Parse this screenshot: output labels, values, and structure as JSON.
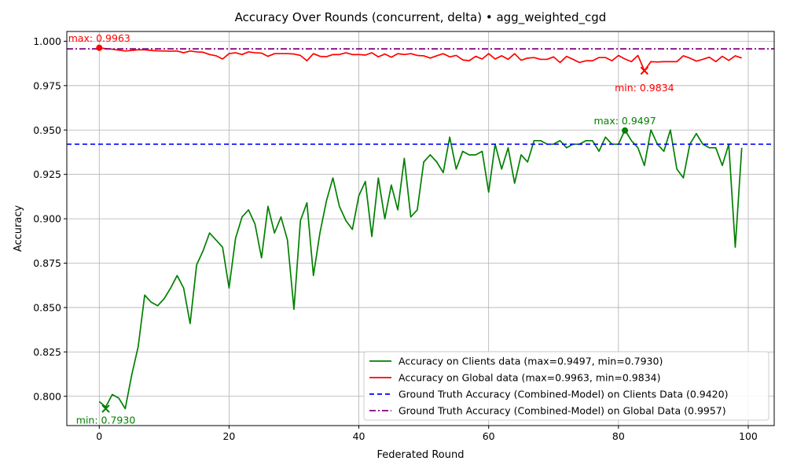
{
  "chart_data": {
    "type": "line",
    "title": "Accuracy Over Rounds (concurrent, delta) • agg_weighted_cgd",
    "xlabel": "Federated Round",
    "ylabel": "Accuracy",
    "xlim": [
      -5,
      104
    ],
    "ylim": [
      0.7835,
      1.0055
    ],
    "xticks": [
      0,
      20,
      40,
      60,
      80,
      100
    ],
    "yticks": [
      0.8,
      0.825,
      0.85,
      0.875,
      0.9,
      0.925,
      0.95,
      0.975,
      1.0
    ],
    "ytick_labels": [
      "0.800",
      "0.825",
      "0.850",
      "0.875",
      "0.900",
      "0.925",
      "0.950",
      "0.975",
      "1.000"
    ],
    "grid": true,
    "legend_position": "lower-right",
    "series": [
      {
        "name": "Accuracy on Clients data (max=0.9497, min=0.7930)",
        "color": "#008000",
        "style": "solid",
        "x": [
          0,
          1,
          2,
          3,
          4,
          5,
          6,
          7,
          8,
          9,
          10,
          11,
          12,
          13,
          14,
          15,
          16,
          17,
          18,
          19,
          20,
          21,
          22,
          23,
          24,
          25,
          26,
          27,
          28,
          29,
          30,
          31,
          32,
          33,
          34,
          35,
          36,
          37,
          38,
          39,
          40,
          41,
          42,
          43,
          44,
          45,
          46,
          47,
          48,
          49,
          50,
          51,
          52,
          53,
          54,
          55,
          56,
          57,
          58,
          59,
          60,
          61,
          62,
          63,
          64,
          65,
          66,
          67,
          68,
          69,
          70,
          71,
          72,
          73,
          74,
          75,
          76,
          77,
          78,
          79,
          80,
          81,
          82,
          83,
          84,
          85,
          86,
          87,
          88,
          89,
          90,
          91,
          92,
          93,
          94,
          95,
          96,
          97,
          98,
          99
        ],
        "values": [
          0.797,
          0.794,
          0.801,
          0.799,
          0.793,
          0.812,
          0.828,
          0.857,
          0.853,
          0.851,
          0.855,
          0.861,
          0.868,
          0.861,
          0.841,
          0.874,
          0.882,
          0.892,
          0.888,
          0.884,
          0.861,
          0.889,
          0.901,
          0.905,
          0.897,
          0.878,
          0.907,
          0.892,
          0.901,
          0.888,
          0.849,
          0.899,
          0.909,
          0.868,
          0.892,
          0.91,
          0.923,
          0.907,
          0.899,
          0.894,
          0.913,
          0.921,
          0.89,
          0.923,
          0.9,
          0.919,
          0.905,
          0.934,
          0.901,
          0.905,
          0.932,
          0.936,
          0.932,
          0.926,
          0.946,
          0.928,
          0.938,
          0.936,
          0.936,
          0.938,
          0.915,
          0.942,
          0.928,
          0.94,
          0.92,
          0.936,
          0.932,
          0.944,
          0.944,
          0.942,
          0.942,
          0.944,
          0.94,
          0.942,
          0.942,
          0.944,
          0.944,
          0.938,
          0.946,
          0.942,
          0.942,
          0.95,
          0.944,
          0.94,
          0.93,
          0.95,
          0.942,
          0.938,
          0.95,
          0.928,
          0.923,
          0.942,
          0.948,
          0.942,
          0.94,
          0.94,
          0.93,
          0.942,
          0.884,
          0.94
        ]
      },
      {
        "name": "Accuracy on Global data (max=0.9963, min=0.9834)",
        "color": "#ff0000",
        "style": "solid",
        "x": [
          0,
          1,
          2,
          3,
          4,
          5,
          6,
          7,
          8,
          9,
          10,
          11,
          12,
          13,
          14,
          15,
          16,
          17,
          18,
          19,
          20,
          21,
          22,
          23,
          24,
          25,
          26,
          27,
          28,
          29,
          30,
          31,
          32,
          33,
          34,
          35,
          36,
          37,
          38,
          39,
          40,
          41,
          42,
          43,
          44,
          45,
          46,
          47,
          48,
          49,
          50,
          51,
          52,
          53,
          54,
          55,
          56,
          57,
          58,
          59,
          60,
          61,
          62,
          63,
          64,
          65,
          66,
          67,
          68,
          69,
          70,
          71,
          72,
          73,
          74,
          75,
          76,
          77,
          78,
          79,
          80,
          81,
          82,
          83,
          84,
          85,
          86,
          87,
          88,
          89,
          90,
          91,
          92,
          93,
          94,
          95,
          96,
          97,
          98,
          99
        ],
        "values": [
          0.9963,
          0.9958,
          0.9955,
          0.995,
          0.9945,
          0.9948,
          0.9952,
          0.9952,
          0.9948,
          0.9946,
          0.9945,
          0.9944,
          0.9945,
          0.9935,
          0.9945,
          0.994,
          0.9938,
          0.9925,
          0.9918,
          0.99,
          0.993,
          0.9935,
          0.9925,
          0.994,
          0.9935,
          0.9933,
          0.9915,
          0.993,
          0.993,
          0.993,
          0.9928,
          0.992,
          0.989,
          0.993,
          0.9915,
          0.9913,
          0.9925,
          0.9925,
          0.9935,
          0.9925,
          0.9925,
          0.9922,
          0.9935,
          0.9912,
          0.9928,
          0.991,
          0.993,
          0.9925,
          0.993,
          0.992,
          0.9918,
          0.9905,
          0.9918,
          0.993,
          0.9912,
          0.992,
          0.9895,
          0.989,
          0.9915,
          0.99,
          0.993,
          0.99,
          0.9918,
          0.9898,
          0.993,
          0.9893,
          0.9905,
          0.9908,
          0.9898,
          0.9898,
          0.9912,
          0.988,
          0.9915,
          0.9898,
          0.988,
          0.989,
          0.989,
          0.9908,
          0.9908,
          0.989,
          0.992,
          0.99,
          0.9885,
          0.992,
          0.9834,
          0.9885,
          0.9883,
          0.9885,
          0.9885,
          0.9885,
          0.9918,
          0.9905,
          0.9888,
          0.9898,
          0.991,
          0.9885,
          0.9915,
          0.9892,
          0.9918,
          0.9905
        ]
      },
      {
        "name": "Ground Truth Accuracy (Combined-Model) on Clients Data (0.9420)",
        "color": "#0000ff",
        "style": "dashed",
        "y": 0.942
      },
      {
        "name": "Ground Truth Accuracy (Combined-Model) on Global Data (0.9957)",
        "color": "#800080",
        "style": "dashdot",
        "y": 0.9957
      }
    ],
    "annotations": [
      {
        "text": "max: 0.9963",
        "x": 0,
        "y": 0.9963,
        "marker": "circle",
        "color": "#ff0000"
      },
      {
        "text": "min: 0.9834",
        "x": 84,
        "y": 0.9834,
        "marker": "x",
        "color": "#ff0000"
      },
      {
        "text": "max: 0.9497",
        "x": 81,
        "y": 0.9497,
        "marker": "circle",
        "color": "#008000"
      },
      {
        "text": "min: 0.7930",
        "x": 1,
        "y": 0.793,
        "marker": "x",
        "color": "#008000"
      }
    ]
  }
}
